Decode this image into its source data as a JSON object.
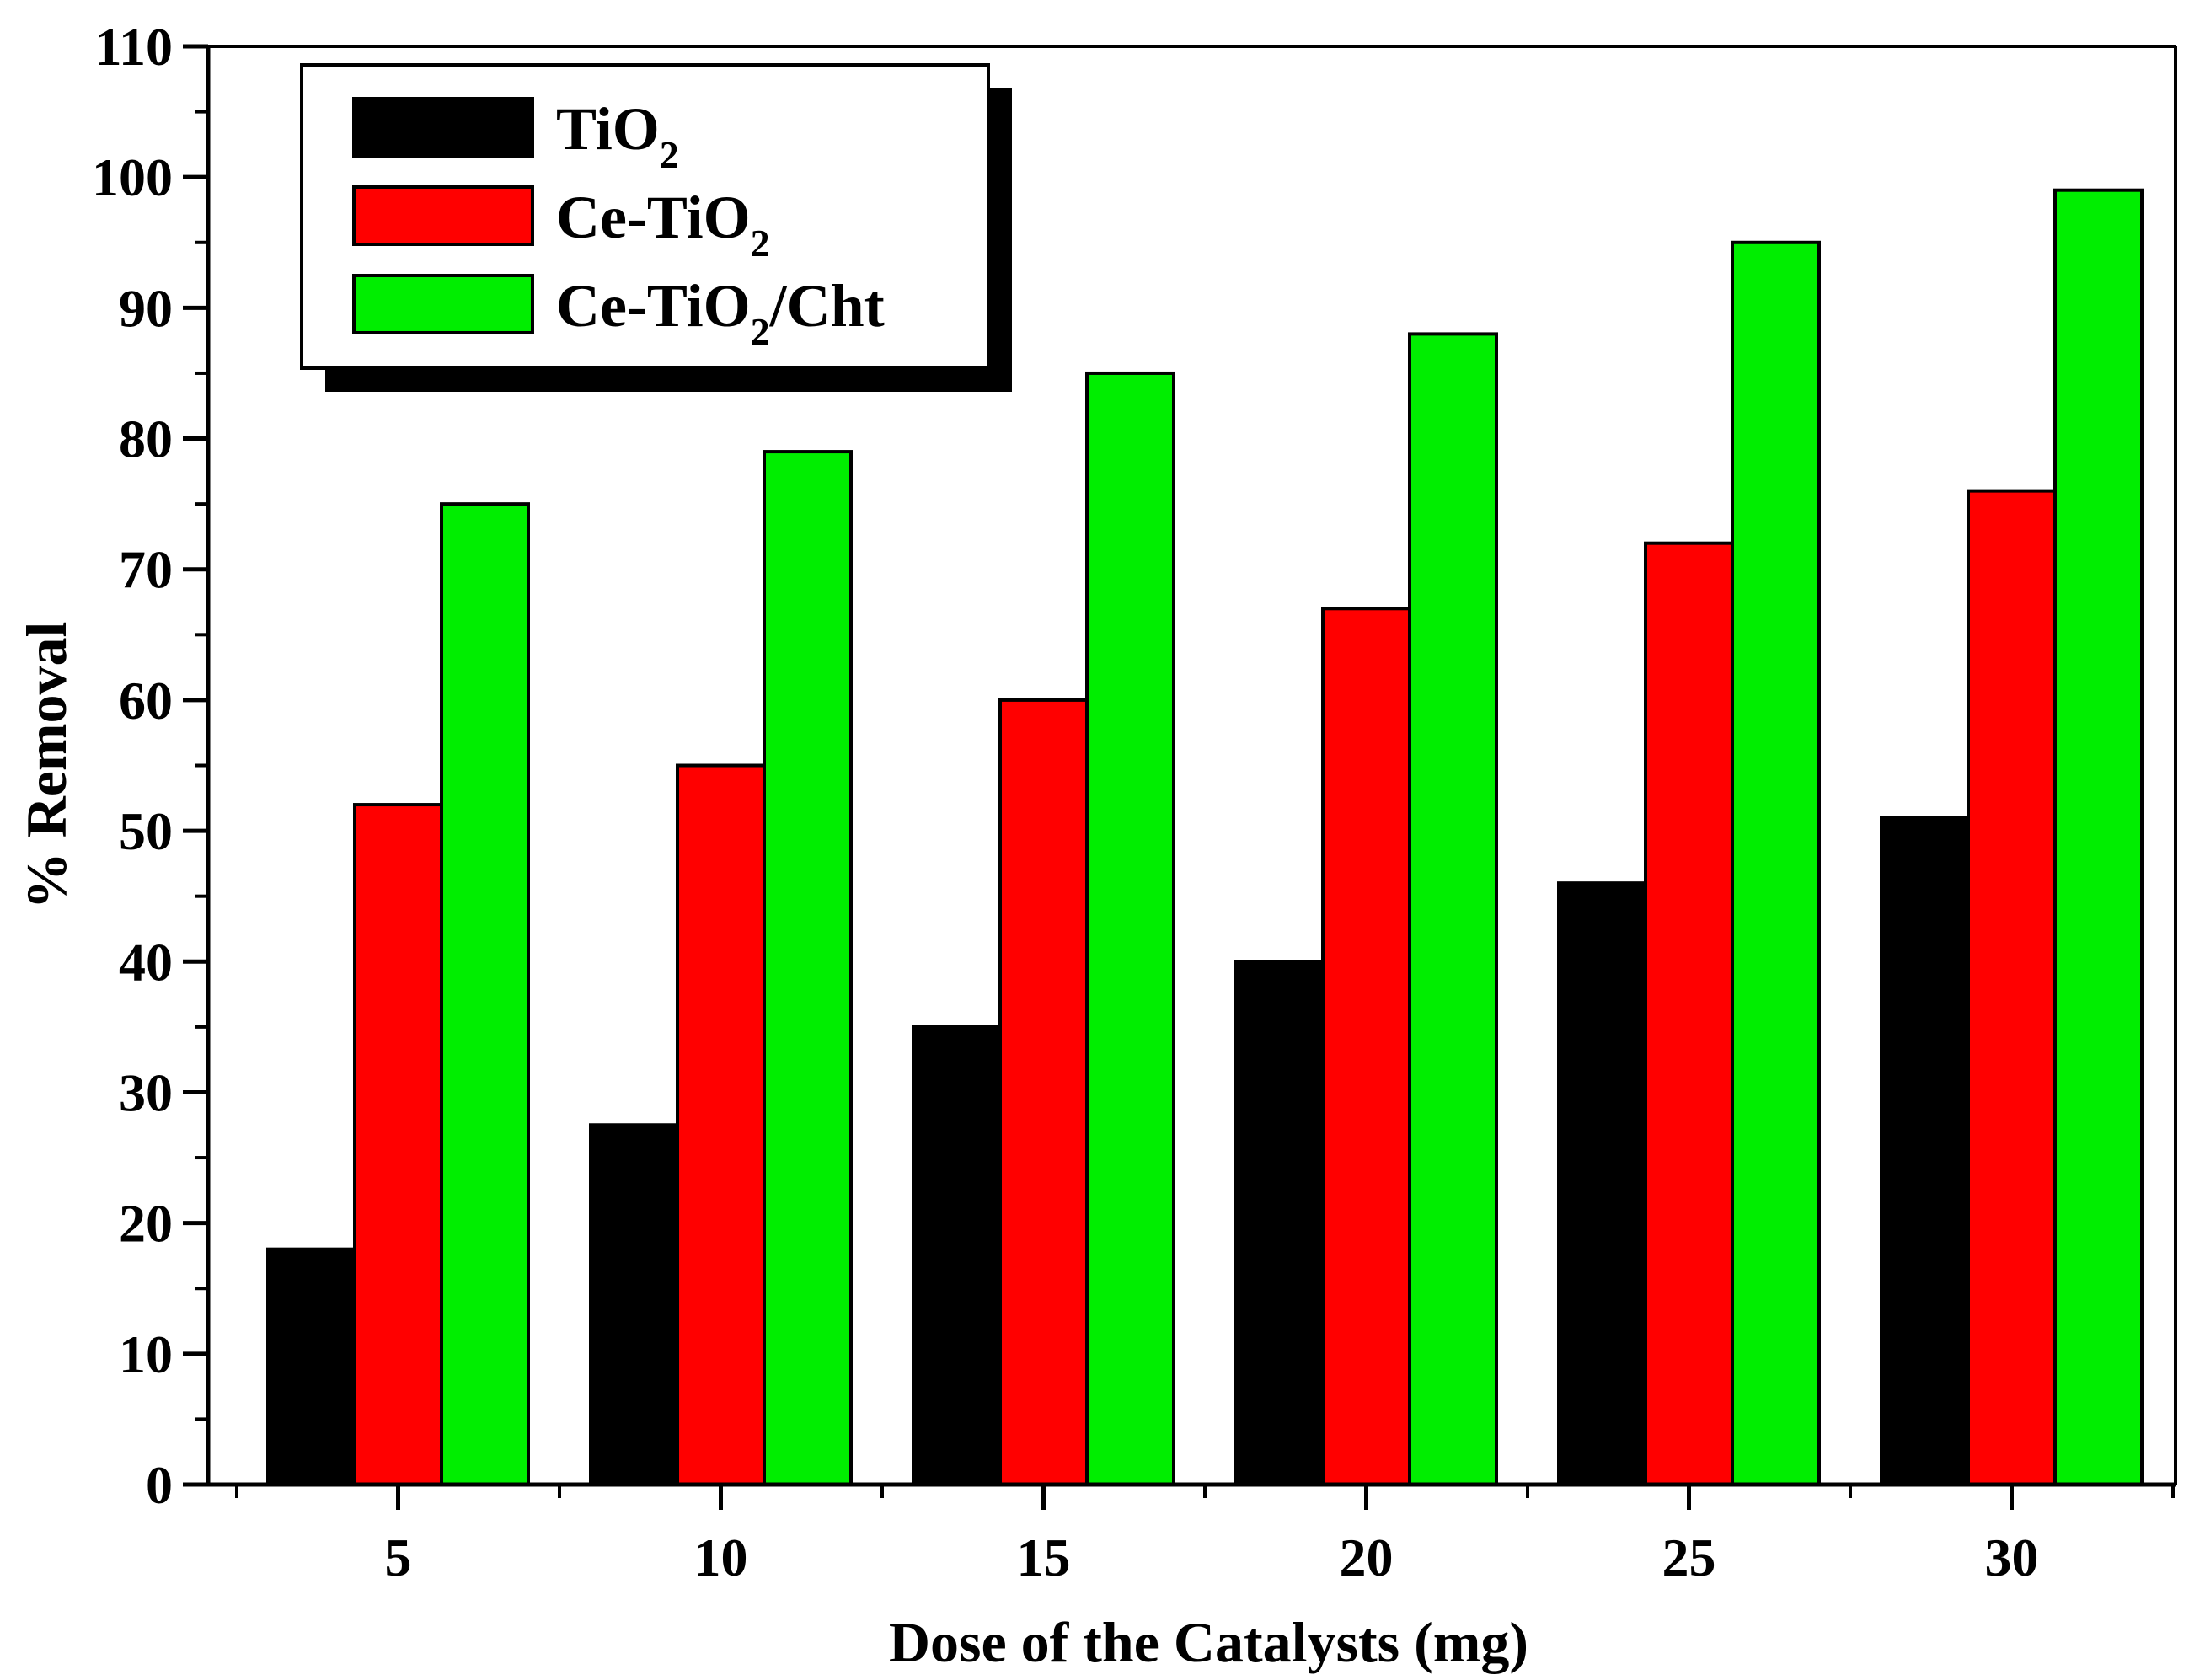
{
  "chart_data": {
    "type": "bar",
    "title": "",
    "xlabel": "Dose of the Catalysts (mg)",
    "ylabel": "% Removal",
    "categories": [
      "5",
      "10",
      "15",
      "20",
      "25",
      "30"
    ],
    "ylim": [
      0,
      110
    ],
    "yticks": [
      0,
      10,
      20,
      30,
      40,
      50,
      60,
      70,
      80,
      90,
      100,
      110
    ],
    "ytick_labels": [
      "0",
      "10",
      "20",
      "30",
      "40",
      "50",
      "60",
      "70",
      "80",
      "90",
      "100",
      "110"
    ],
    "grid": false,
    "legend_position": "top-left",
    "series": [
      {
        "name": "TiO2",
        "legend_base": "TiO",
        "legend_sub": "2",
        "legend_suffix": "",
        "color": "#000000",
        "values": [
          18,
          27.5,
          35,
          40,
          46,
          51
        ]
      },
      {
        "name": "Ce-TiO2",
        "legend_base": "Ce-TiO",
        "legend_sub": "2",
        "legend_suffix": "",
        "color": "#ff0000",
        "values": [
          52,
          55,
          60,
          67,
          72,
          76
        ]
      },
      {
        "name": "Ce-TiO2/Cht",
        "legend_base": "Ce-TiO",
        "legend_sub": "2",
        "legend_suffix": "/Cht",
        "color": "#00ee00",
        "values": [
          75,
          79,
          85,
          88,
          95,
          99
        ]
      }
    ]
  }
}
